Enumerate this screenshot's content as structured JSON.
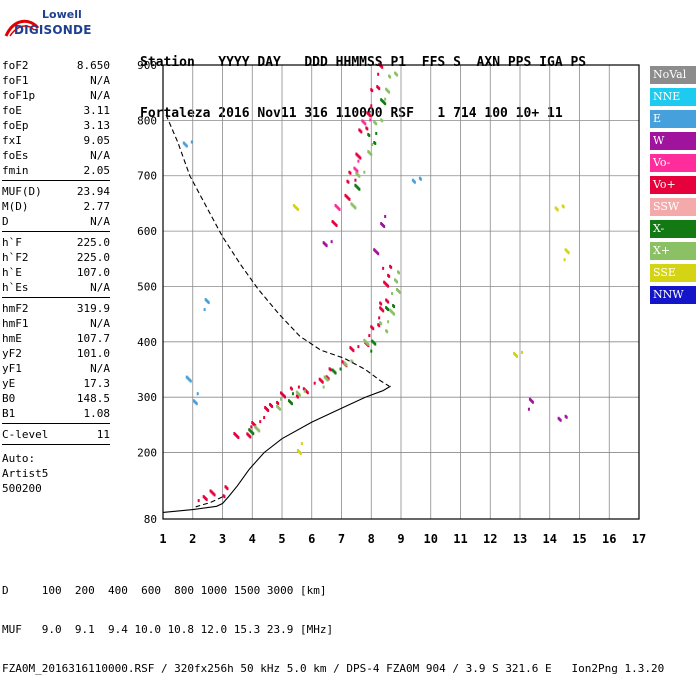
{
  "logo": {
    "line1": "Lowell",
    "line2": "DIGISONDE"
  },
  "header": {
    "labels": "Station   YYYY DAY   DDD HHMMSS P1  FFS S  AXN PPS IGA PS",
    "values": "Fortaleza 2016 Nov11 316 110000 RSF   1 714 100 10+ 11"
  },
  "params_group1": [
    {
      "label": "foF2",
      "value": "8.650"
    },
    {
      "label": "foF1",
      "value": "N/A"
    },
    {
      "label": "foF1p",
      "value": "N/A"
    },
    {
      "label": "foE",
      "value": "3.11"
    },
    {
      "label": "foEp",
      "value": "3.13"
    },
    {
      "label": "fxI",
      "value": "9.05"
    },
    {
      "label": "foEs",
      "value": "N/A"
    },
    {
      "label": "fmin",
      "value": "2.05"
    }
  ],
  "params_group2": [
    {
      "label": "MUF(D)",
      "value": "23.94"
    },
    {
      "label": "M(D)",
      "value": "2.77"
    },
    {
      "label": "D",
      "value": "N/A"
    }
  ],
  "params_group3": [
    {
      "label": "h`F",
      "value": "225.0"
    },
    {
      "label": "h`F2",
      "value": "225.0"
    },
    {
      "label": "h`E",
      "value": "107.0"
    },
    {
      "label": "h`Es",
      "value": "N/A"
    }
  ],
  "params_group4": [
    {
      "label": "hmF2",
      "value": "319.9"
    },
    {
      "label": "hmF1",
      "value": "N/A"
    },
    {
      "label": "hmE",
      "value": "107.7"
    },
    {
      "label": "yF2",
      "value": "101.0"
    },
    {
      "label": "yF1",
      "value": "N/A"
    },
    {
      "label": "yE",
      "value": "17.3"
    },
    {
      "label": "B0",
      "value": "148.5"
    },
    {
      "label": "B1",
      "value": "1.08"
    }
  ],
  "clevel": {
    "label": "C-level",
    "value": "11"
  },
  "auto": {
    "line1": "Auto:",
    "line2": "Artist5",
    "line3": "500200"
  },
  "legend": [
    {
      "label": "NoVal",
      "color": "#8c8c8c",
      "text": "#ffffff"
    },
    {
      "label": "NNE",
      "color": "#1ecbf0",
      "text": "#ffffff"
    },
    {
      "label": "E",
      "color": "#46a0dc",
      "text": "#ffffff"
    },
    {
      "label": "W",
      "color": "#a0139c",
      "text": "#ffffff"
    },
    {
      "label": "Vo-",
      "color": "#ff2c9c",
      "text": "#ffffff"
    },
    {
      "label": "Vo+",
      "color": "#e6003c",
      "text": "#ffffff"
    },
    {
      "label": "SSW",
      "color": "#f4aaaa",
      "text": "#ffffff"
    },
    {
      "label": "X-",
      "color": "#137a13",
      "text": "#ffffff"
    },
    {
      "label": "X+",
      "color": "#8cc064",
      "text": "#ffffff"
    },
    {
      "label": "SSE",
      "color": "#d4d414",
      "text": "#ffffff"
    },
    {
      "label": "NNW",
      "color": "#1414c8",
      "text": "#ffffff"
    }
  ],
  "footer": {
    "d_line": "D     100  200  400  600  800 1000 1500 3000 [km]",
    "muf_line": "MUF   9.0  9.1  9.4 10.0 10.8 12.0 15.3 23.9 [MHz]",
    "file_line": "FZA0M_2016316110000.RSF / 320fx256h 50 kHz 5.0 km / DPS-4 FZA0M 904 / 3.9 S 321.6 E   Ion2Png 1.3.20"
  },
  "chart_data": {
    "type": "scatter",
    "x_ticks": [
      1,
      2,
      3,
      4,
      5,
      6,
      7,
      8,
      9,
      10,
      11,
      12,
      13,
      14,
      15,
      16,
      17
    ],
    "y_ticks": [
      80,
      200,
      300,
      400,
      500,
      600,
      700,
      800,
      900
    ],
    "xlim": [
      1,
      17
    ],
    "ylim": [
      80,
      900
    ],
    "grid": true,
    "legend_position": "right",
    "series": [
      {
        "name": "Vo+",
        "color": "#e6003c",
        "points": [
          [
            3.5,
            228
          ],
          [
            3.8,
            240
          ],
          [
            4.1,
            255
          ],
          [
            4.4,
            275
          ],
          [
            4.7,
            295
          ],
          [
            5.0,
            305
          ],
          [
            5.4,
            312
          ],
          [
            5.8,
            318
          ],
          [
            6.2,
            328
          ],
          [
            6.6,
            345
          ],
          [
            7.0,
            365
          ],
          [
            7.4,
            385
          ],
          [
            7.8,
            405
          ],
          [
            8.1,
            430
          ],
          [
            8.3,
            455
          ],
          [
            8.4,
            480
          ],
          [
            8.5,
            505
          ],
          [
            8.5,
            530
          ],
          [
            6.8,
            620
          ],
          [
            7.1,
            660
          ],
          [
            7.3,
            700
          ],
          [
            7.5,
            740
          ],
          [
            7.7,
            780
          ],
          [
            7.9,
            820
          ],
          [
            8.1,
            860
          ],
          [
            8.3,
            895
          ],
          [
            2.3,
            125
          ],
          [
            2.7,
            128
          ],
          [
            3.0,
            132
          ]
        ]
      },
      {
        "name": "X+",
        "color": "#8cc064",
        "points": [
          [
            4.2,
            240
          ],
          [
            4.8,
            290
          ],
          [
            5.6,
            310
          ],
          [
            6.4,
            330
          ],
          [
            7.2,
            370
          ],
          [
            7.8,
            400
          ],
          [
            8.4,
            430
          ],
          [
            8.7,
            460
          ],
          [
            8.8,
            490
          ],
          [
            8.9,
            520
          ],
          [
            7.3,
            650
          ],
          [
            7.6,
            700
          ],
          [
            7.9,
            750
          ],
          [
            8.2,
            800
          ],
          [
            8.5,
            850
          ],
          [
            8.7,
            890
          ]
        ]
      },
      {
        "name": "X-",
        "color": "#137a13",
        "points": [
          [
            4.0,
            235
          ],
          [
            5.2,
            300
          ],
          [
            6.8,
            350
          ],
          [
            8.0,
            395
          ],
          [
            8.6,
            470
          ],
          [
            7.5,
            680
          ],
          [
            8.0,
            770
          ],
          [
            8.4,
            840
          ]
        ]
      },
      {
        "name": "Vo-",
        "color": "#ff2c9c",
        "points": [
          [
            6.9,
            640
          ],
          [
            7.4,
            720
          ],
          [
            7.8,
            800
          ]
        ]
      },
      {
        "name": "W",
        "color": "#a0139c",
        "points": [
          [
            8.2,
            560
          ],
          [
            8.3,
            620
          ],
          [
            6.5,
            580
          ],
          [
            13.3,
            290
          ],
          [
            14.4,
            270
          ]
        ]
      },
      {
        "name": "E",
        "color": "#46a0dc",
        "points": [
          [
            1.9,
            330
          ],
          [
            2.0,
            300
          ],
          [
            1.8,
            760
          ],
          [
            2.4,
            470
          ],
          [
            9.5,
            700
          ]
        ]
      },
      {
        "name": "SSE",
        "color": "#d4d414",
        "points": [
          [
            5.5,
            640
          ],
          [
            5.5,
            210
          ],
          [
            12.9,
            380
          ],
          [
            14.5,
            560
          ],
          [
            14.3,
            650
          ]
        ]
      }
    ],
    "profile_solid": [
      [
        1.0,
        92
      ],
      [
        2.0,
        97
      ],
      [
        2.8,
        103
      ],
      [
        3.0,
        108
      ],
      [
        3.2,
        120
      ],
      [
        3.5,
        140
      ],
      [
        3.9,
        170
      ],
      [
        4.4,
        200
      ],
      [
        5.0,
        225
      ],
      [
        6.0,
        255
      ],
      [
        7.0,
        280
      ],
      [
        7.8,
        300
      ],
      [
        8.4,
        312
      ],
      [
        8.65,
        320
      ]
    ],
    "profile_dashed": [
      [
        1.1,
        810
      ],
      [
        1.5,
        760
      ],
      [
        1.9,
        700
      ],
      [
        2.5,
        640
      ],
      [
        3.0,
        590
      ],
      [
        3.6,
        540
      ],
      [
        4.2,
        495
      ],
      [
        4.9,
        450
      ],
      [
        5.6,
        410
      ],
      [
        6.3,
        385
      ],
      [
        7.1,
        370
      ],
      [
        7.8,
        350
      ],
      [
        8.3,
        330
      ],
      [
        8.6,
        320
      ],
      [
        3.0,
        120
      ],
      [
        2.6,
        110
      ],
      [
        2.1,
        102
      ]
    ]
  }
}
